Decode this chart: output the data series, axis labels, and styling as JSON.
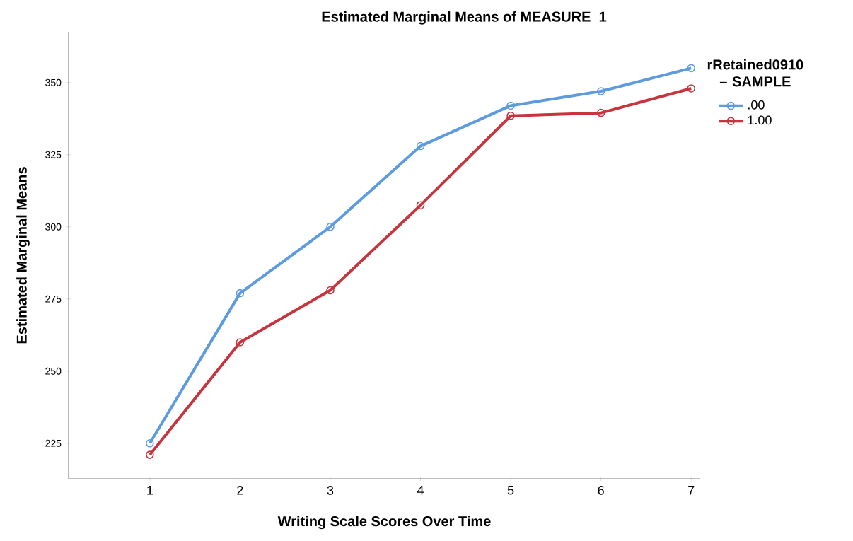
{
  "chart_data": {
    "type": "line",
    "title": "Estimated Marginal Means of MEASURE_1",
    "xlabel": "Writing Scale Scores Over Time",
    "ylabel": "Estimated Marginal Means",
    "legend_title": "rRetained0910 – SAMPLE",
    "categories": [
      "1",
      "2",
      "3",
      "4",
      "5",
      "6",
      "7"
    ],
    "series": [
      {
        "name": ".00",
        "color": "#5d9be0",
        "values": [
          225,
          277,
          300,
          328,
          342,
          347,
          355
        ]
      },
      {
        "name": "1.00",
        "color": "#c8343e",
        "values": [
          221,
          260,
          278,
          307.5,
          338.5,
          339.5,
          348
        ]
      }
    ],
    "ylim": [
      212.7,
      367.6
    ],
    "yticks": [
      225,
      250,
      275,
      300,
      325,
      350
    ],
    "grid": false,
    "legend": "top right",
    "marker": "circle",
    "line_style": "solid"
  }
}
